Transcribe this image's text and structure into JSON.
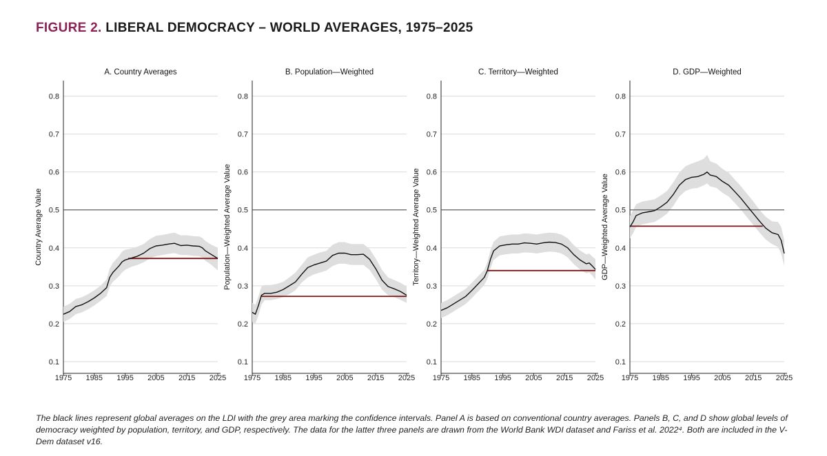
{
  "figure": {
    "label": "FIGURE 2.",
    "title": "LIBERAL DEMOCRACY – WORLD AVERAGES, 1975–2025"
  },
  "caption": "The black lines represent global averages on the LDI with the grey area marking the confidence intervals. Panel A is based on conventional country averages. Panels B, C, and D show global levels of democracy weighted by population, territory, and GDP, respectively. The data for the latter three panels are drawn from the World Bank WDI dataset and Fariss et al. 2022⁴.  Both are included in the V-Dem dataset v16.",
  "colors": {
    "line": "#111111",
    "band": "#dedede",
    "reference_line": "#555555",
    "baseline": "#7a1515",
    "grid": "#d9d9d9",
    "title_accent": "#8b2257"
  },
  "chart_data": [
    {
      "type": "line",
      "title": "A. Country Averages",
      "ylabel": "Country Average Value",
      "xlabel": "",
      "xlim": [
        1975,
        2025
      ],
      "ylim": [
        0.08,
        0.83
      ],
      "xticks": [
        "1975",
        "1985",
        "1995",
        "2005",
        "2015",
        "2025"
      ],
      "yticks": [
        "0.1",
        "0.2",
        "0.3",
        "0.4",
        "0.5",
        "0.6",
        "0.7",
        "0.8"
      ],
      "reference_line": 0.5,
      "baseline": {
        "value": 0.372,
        "from": 1996,
        "to": 2025
      },
      "series": [
        {
          "name": "Country Average",
          "x": [
            1975,
            1977,
            1979,
            1981,
            1983,
            1985,
            1987,
            1989,
            1990,
            1991,
            1993,
            1994,
            1995,
            1997,
            1999,
            2001,
            2003,
            2005,
            2007,
            2009,
            2011,
            2013,
            2015,
            2017,
            2019,
            2020,
            2021,
            2023,
            2025
          ],
          "values": [
            0.225,
            0.232,
            0.245,
            0.25,
            0.258,
            0.268,
            0.28,
            0.295,
            0.322,
            0.335,
            0.352,
            0.363,
            0.368,
            0.373,
            0.378,
            0.386,
            0.398,
            0.405,
            0.407,
            0.41,
            0.412,
            0.406,
            0.407,
            0.405,
            0.404,
            0.4,
            0.392,
            0.382,
            0.372
          ],
          "lower": [
            0.205,
            0.212,
            0.225,
            0.23,
            0.238,
            0.248,
            0.26,
            0.273,
            0.298,
            0.31,
            0.325,
            0.335,
            0.342,
            0.35,
            0.355,
            0.362,
            0.372,
            0.378,
            0.381,
            0.384,
            0.386,
            0.381,
            0.381,
            0.379,
            0.378,
            0.374,
            0.366,
            0.355,
            0.34
          ],
          "upper": [
            0.245,
            0.252,
            0.265,
            0.27,
            0.278,
            0.288,
            0.3,
            0.317,
            0.345,
            0.36,
            0.378,
            0.39,
            0.395,
            0.398,
            0.403,
            0.41,
            0.423,
            0.432,
            0.434,
            0.437,
            0.44,
            0.433,
            0.433,
            0.431,
            0.43,
            0.426,
            0.418,
            0.408,
            0.4
          ]
        }
      ]
    },
    {
      "type": "line",
      "title": "B. Population—Weighted",
      "ylabel": "Population—Weighted Average Value",
      "xlabel": "",
      "xlim": [
        1975,
        2025
      ],
      "ylim": [
        0.08,
        0.83
      ],
      "xticks": [
        "1975",
        "1985",
        "1995",
        "2005",
        "2015",
        "2025"
      ],
      "yticks": [
        "0.1",
        "0.2",
        "0.3",
        "0.4",
        "0.5",
        "0.6",
        "0.7",
        "0.8"
      ],
      "reference_line": 0.5,
      "baseline": {
        "value": 0.272,
        "from": 1978,
        "to": 2025
      },
      "series": [
        {
          "name": "Population-Weighted Average",
          "x": [
            1975,
            1976,
            1977,
            1978,
            1979,
            1981,
            1983,
            1985,
            1987,
            1989,
            1991,
            1993,
            1995,
            1997,
            1999,
            2001,
            2003,
            2005,
            2007,
            2009,
            2011,
            2013,
            2015,
            2017,
            2019,
            2021,
            2023,
            2025
          ],
          "values": [
            0.23,
            0.225,
            0.248,
            0.275,
            0.28,
            0.28,
            0.283,
            0.29,
            0.3,
            0.31,
            0.33,
            0.348,
            0.355,
            0.36,
            0.365,
            0.38,
            0.386,
            0.386,
            0.382,
            0.382,
            0.383,
            0.37,
            0.345,
            0.315,
            0.298,
            0.292,
            0.285,
            0.275
          ],
          "lower": [
            0.205,
            0.2,
            0.222,
            0.25,
            0.262,
            0.262,
            0.265,
            0.27,
            0.278,
            0.288,
            0.308,
            0.322,
            0.33,
            0.335,
            0.34,
            0.352,
            0.358,
            0.358,
            0.355,
            0.355,
            0.355,
            0.342,
            0.318,
            0.29,
            0.275,
            0.27,
            0.263,
            0.255
          ],
          "upper": [
            0.255,
            0.25,
            0.272,
            0.298,
            0.302,
            0.302,
            0.305,
            0.31,
            0.322,
            0.335,
            0.355,
            0.375,
            0.382,
            0.388,
            0.392,
            0.408,
            0.415,
            0.415,
            0.41,
            0.41,
            0.41,
            0.397,
            0.372,
            0.342,
            0.322,
            0.315,
            0.308,
            0.298
          ]
        }
      ]
    },
    {
      "type": "line",
      "title": "C. Territory—Weighted",
      "ylabel": "Territory—Weighted Average Value",
      "xlabel": "",
      "xlim": [
        1975,
        2025
      ],
      "ylim": [
        0.08,
        0.83
      ],
      "xticks": [
        "1975",
        "1985",
        "1995",
        "2005",
        "2015",
        "2025"
      ],
      "yticks": [
        "0.1",
        "0.2",
        "0.3",
        "0.4",
        "0.5",
        "0.6",
        "0.7",
        "0.8"
      ],
      "reference_line": 0.5,
      "baseline": {
        "value": 0.34,
        "from": 1990,
        "to": 2025
      },
      "series": [
        {
          "name": "Territory-Weighted Average",
          "x": [
            1975,
            1977,
            1979,
            1981,
            1983,
            1985,
            1987,
            1989,
            1990,
            1991,
            1992,
            1994,
            1996,
            1998,
            2000,
            2002,
            2004,
            2006,
            2008,
            2010,
            2012,
            2014,
            2016,
            2018,
            2020,
            2022,
            2023,
            2024,
            2025
          ],
          "values": [
            0.235,
            0.242,
            0.252,
            0.262,
            0.272,
            0.288,
            0.305,
            0.322,
            0.34,
            0.37,
            0.392,
            0.405,
            0.408,
            0.41,
            0.41,
            0.413,
            0.412,
            0.41,
            0.413,
            0.415,
            0.414,
            0.41,
            0.4,
            0.382,
            0.368,
            0.358,
            0.36,
            0.352,
            0.343
          ],
          "lower": [
            0.215,
            0.222,
            0.232,
            0.242,
            0.252,
            0.268,
            0.285,
            0.302,
            0.318,
            0.346,
            0.368,
            0.38,
            0.383,
            0.385,
            0.385,
            0.388,
            0.387,
            0.385,
            0.388,
            0.39,
            0.389,
            0.385,
            0.375,
            0.357,
            0.343,
            0.333,
            0.335,
            0.327,
            0.316
          ],
          "upper": [
            0.255,
            0.262,
            0.272,
            0.282,
            0.292,
            0.308,
            0.325,
            0.342,
            0.362,
            0.394,
            0.416,
            0.43,
            0.433,
            0.435,
            0.435,
            0.438,
            0.437,
            0.435,
            0.438,
            0.44,
            0.439,
            0.435,
            0.425,
            0.407,
            0.393,
            0.383,
            0.385,
            0.377,
            0.37
          ]
        }
      ]
    },
    {
      "type": "line",
      "title": "D. GDP—Weighted",
      "ylabel": "GDP—Weighted Average Value",
      "xlabel": "",
      "xlim": [
        1975,
        2025
      ],
      "ylim": [
        0.08,
        0.83
      ],
      "xticks": [
        "1975",
        "1985",
        "1995",
        "2005",
        "2015",
        "2025"
      ],
      "yticks": [
        "0.1",
        "0.2",
        "0.3",
        "0.4",
        "0.5",
        "0.6",
        "0.7",
        "0.8"
      ],
      "reference_line": 0.5,
      "baseline": {
        "value": 0.457,
        "from": 1975,
        "to": 2018
      },
      "series": [
        {
          "name": "GDP-Weighted Average",
          "x": [
            1975,
            1976,
            1977,
            1979,
            1981,
            1983,
            1985,
            1987,
            1989,
            1991,
            1993,
            1995,
            1997,
            1999,
            2000,
            2001,
            2003,
            2005,
            2007,
            2009,
            2011,
            2013,
            2015,
            2017,
            2019,
            2021,
            2023,
            2024,
            2025
          ],
          "values": [
            0.455,
            0.468,
            0.485,
            0.492,
            0.495,
            0.498,
            0.508,
            0.52,
            0.54,
            0.565,
            0.58,
            0.586,
            0.588,
            0.594,
            0.6,
            0.592,
            0.588,
            0.575,
            0.565,
            0.548,
            0.53,
            0.51,
            0.49,
            0.47,
            0.452,
            0.44,
            0.435,
            0.42,
            0.385
          ],
          "lower": [
            0.425,
            0.438,
            0.455,
            0.462,
            0.465,
            0.468,
            0.478,
            0.49,
            0.51,
            0.535,
            0.55,
            0.556,
            0.558,
            0.565,
            0.57,
            0.562,
            0.558,
            0.545,
            0.535,
            0.518,
            0.5,
            0.48,
            0.46,
            0.44,
            0.422,
            0.41,
            0.402,
            0.385,
            0.352
          ],
          "upper": [
            0.485,
            0.498,
            0.515,
            0.522,
            0.525,
            0.528,
            0.538,
            0.55,
            0.572,
            0.598,
            0.615,
            0.622,
            0.628,
            0.635,
            0.645,
            0.628,
            0.622,
            0.608,
            0.598,
            0.58,
            0.562,
            0.542,
            0.522,
            0.5,
            0.482,
            0.47,
            0.468,
            0.455,
            0.42
          ]
        }
      ]
    }
  ]
}
